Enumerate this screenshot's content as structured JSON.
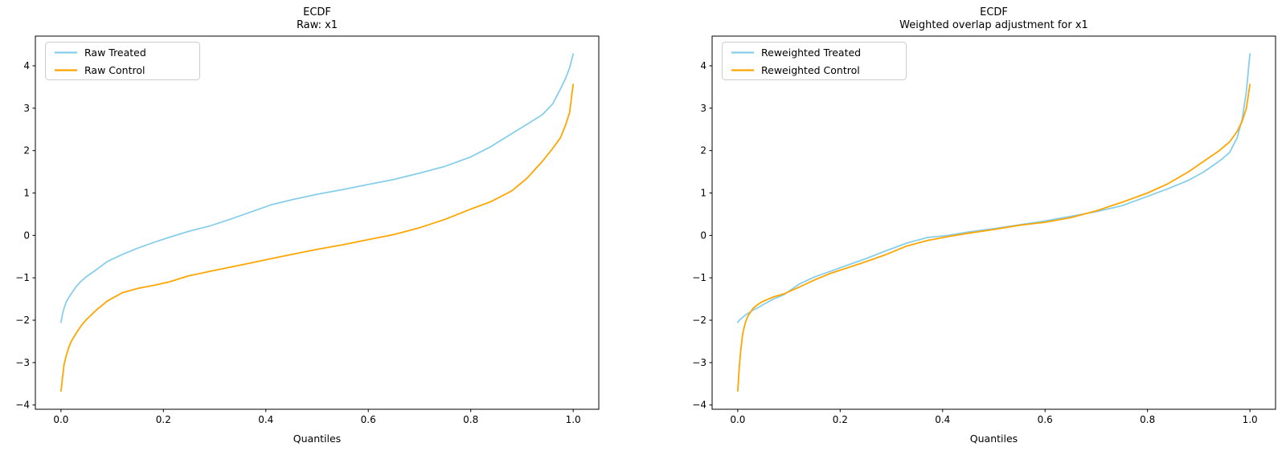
{
  "figure": {
    "background": "#ffffff",
    "spine_color": "#000000",
    "treated_color": "#87ceeb",
    "control_color": "#ffa500"
  },
  "chart_data": [
    {
      "type": "line",
      "title": "ECDF",
      "subtitle": "Raw: x1",
      "xlabel": "Quantiles",
      "ylabel": "",
      "grid": false,
      "legend_position": "upper left",
      "xlim": [
        -0.05,
        1.05
      ],
      "ylim": [
        -4.1,
        4.7
      ],
      "xticks": [
        0.0,
        0.2,
        0.4,
        0.6,
        0.8,
        1.0
      ],
      "xtick_labels": [
        "0.0",
        "0.2",
        "0.4",
        "0.6",
        "0.8",
        "1.0"
      ],
      "yticks": [
        -4,
        -3,
        -2,
        -1,
        0,
        1,
        2,
        3,
        4
      ],
      "ytick_labels": [
        "−4",
        "−3",
        "−2",
        "−1",
        "0",
        "1",
        "2",
        "3",
        "4"
      ],
      "x": [
        0,
        0.003,
        0.006,
        0.01,
        0.015,
        0.02,
        0.03,
        0.04,
        0.05,
        0.07,
        0.09,
        0.12,
        0.15,
        0.18,
        0.21,
        0.25,
        0.29,
        0.33,
        0.37,
        0.41,
        0.45,
        0.5,
        0.55,
        0.6,
        0.65,
        0.7,
        0.75,
        0.8,
        0.84,
        0.88,
        0.91,
        0.94,
        0.96,
        0.975,
        0.985,
        0.993,
        1.0
      ],
      "series": [
        {
          "name": "Raw Treated",
          "color": "#87ceeb",
          "values": [
            -2.05,
            -1.85,
            -1.72,
            -1.58,
            -1.47,
            -1.38,
            -1.2,
            -1.07,
            -0.97,
            -0.8,
            -0.62,
            -0.45,
            -0.3,
            -0.17,
            -0.05,
            0.1,
            0.22,
            0.38,
            0.55,
            0.72,
            0.84,
            0.97,
            1.08,
            1.2,
            1.32,
            1.47,
            1.63,
            1.85,
            2.1,
            2.4,
            2.62,
            2.85,
            3.1,
            3.45,
            3.7,
            3.95,
            4.28
          ]
        },
        {
          "name": "Raw Control",
          "color": "#ffa500",
          "values": [
            -3.67,
            -3.35,
            -3.05,
            -2.85,
            -2.65,
            -2.5,
            -2.3,
            -2.12,
            -1.98,
            -1.75,
            -1.55,
            -1.35,
            -1.25,
            -1.18,
            -1.1,
            -0.95,
            -0.85,
            -0.75,
            -0.65,
            -0.55,
            -0.45,
            -0.33,
            -0.22,
            -0.1,
            0.02,
            0.18,
            0.38,
            0.62,
            0.8,
            1.05,
            1.35,
            1.75,
            2.05,
            2.3,
            2.6,
            2.9,
            3.56
          ]
        }
      ]
    },
    {
      "type": "line",
      "title": "ECDF",
      "subtitle": "Weighted overlap adjustment for x1",
      "xlabel": "Quantiles",
      "ylabel": "",
      "grid": false,
      "legend_position": "upper left",
      "xlim": [
        -0.05,
        1.05
      ],
      "ylim": [
        -4.1,
        4.7
      ],
      "xticks": [
        0.0,
        0.2,
        0.4,
        0.6,
        0.8,
        1.0
      ],
      "xtick_labels": [
        "0.0",
        "0.2",
        "0.4",
        "0.6",
        "0.8",
        "1.0"
      ],
      "yticks": [
        -4,
        -3,
        -2,
        -1,
        0,
        1,
        2,
        3,
        4
      ],
      "ytick_labels": [
        "−4",
        "−3",
        "−2",
        "−1",
        "0",
        "1",
        "2",
        "3",
        "4"
      ],
      "x": [
        0,
        0.003,
        0.006,
        0.01,
        0.015,
        0.02,
        0.03,
        0.04,
        0.05,
        0.07,
        0.09,
        0.12,
        0.15,
        0.18,
        0.21,
        0.25,
        0.29,
        0.33,
        0.37,
        0.41,
        0.45,
        0.5,
        0.55,
        0.6,
        0.65,
        0.7,
        0.75,
        0.8,
        0.84,
        0.88,
        0.91,
        0.94,
        0.96,
        0.975,
        0.985,
        0.993,
        1.0
      ],
      "series": [
        {
          "name": "Reweighted Treated",
          "color": "#87ceeb",
          "values": [
            -2.05,
            -2.0,
            -1.97,
            -1.93,
            -1.88,
            -1.84,
            -1.76,
            -1.7,
            -1.63,
            -1.5,
            -1.4,
            -1.15,
            -0.98,
            -0.85,
            -0.72,
            -0.55,
            -0.36,
            -0.18,
            -0.05,
            0.0,
            0.08,
            0.16,
            0.25,
            0.34,
            0.45,
            0.56,
            0.7,
            0.92,
            1.1,
            1.3,
            1.5,
            1.75,
            1.95,
            2.3,
            2.75,
            3.4,
            4.28
          ]
        },
        {
          "name": "Reweighted Control",
          "color": "#ffa500",
          "values": [
            -3.67,
            -3.1,
            -2.7,
            -2.3,
            -2.05,
            -1.9,
            -1.72,
            -1.62,
            -1.55,
            -1.45,
            -1.38,
            -1.22,
            -1.05,
            -0.9,
            -0.78,
            -0.62,
            -0.45,
            -0.25,
            -0.12,
            -0.03,
            0.05,
            0.14,
            0.24,
            0.31,
            0.42,
            0.58,
            0.78,
            1.0,
            1.22,
            1.5,
            1.75,
            2.0,
            2.2,
            2.45,
            2.7,
            3.0,
            3.56
          ]
        }
      ]
    }
  ]
}
